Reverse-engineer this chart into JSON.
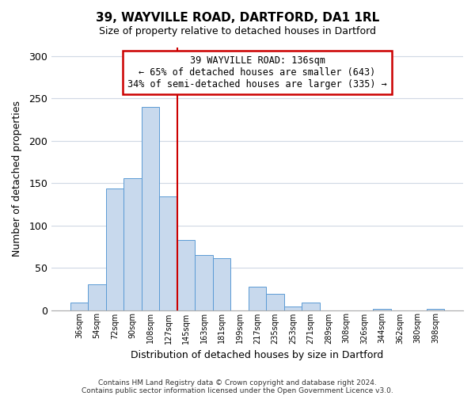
{
  "title": "39, WAYVILLE ROAD, DARTFORD, DA1 1RL",
  "subtitle": "Size of property relative to detached houses in Dartford",
  "xlabel": "Distribution of detached houses by size in Dartford",
  "ylabel": "Number of detached properties",
  "footnote1": "Contains HM Land Registry data © Crown copyright and database right 2024.",
  "footnote2": "Contains public sector information licensed under the Open Government Licence v3.0.",
  "bar_labels": [
    "36sqm",
    "54sqm",
    "72sqm",
    "90sqm",
    "108sqm",
    "127sqm",
    "145sqm",
    "163sqm",
    "181sqm",
    "199sqm",
    "217sqm",
    "235sqm",
    "253sqm",
    "271sqm",
    "289sqm",
    "308sqm",
    "326sqm",
    "344sqm",
    "362sqm",
    "380sqm",
    "398sqm"
  ],
  "bar_values": [
    9,
    30,
    144,
    156,
    240,
    134,
    83,
    65,
    61,
    0,
    28,
    19,
    4,
    9,
    0,
    0,
    0,
    1,
    0,
    0,
    1
  ],
  "bar_color": "#c8d9ed",
  "bar_edge_color": "#5b9bd5",
  "vline_x_index": 5.5,
  "vline_color": "#cc0000",
  "annotation_line1": "39 WAYVILLE ROAD: 136sqm",
  "annotation_line2": "← 65% of detached houses are smaller (643)",
  "annotation_line3": "34% of semi-detached houses are larger (335) →",
  "annotation_box_color": "#ffffff",
  "annotation_box_edge": "#cc0000",
  "ylim": [
    0,
    310
  ],
  "yticks": [
    0,
    50,
    100,
    150,
    200,
    250,
    300
  ],
  "background_color": "#ffffff",
  "grid_color": "#d0d8e4"
}
